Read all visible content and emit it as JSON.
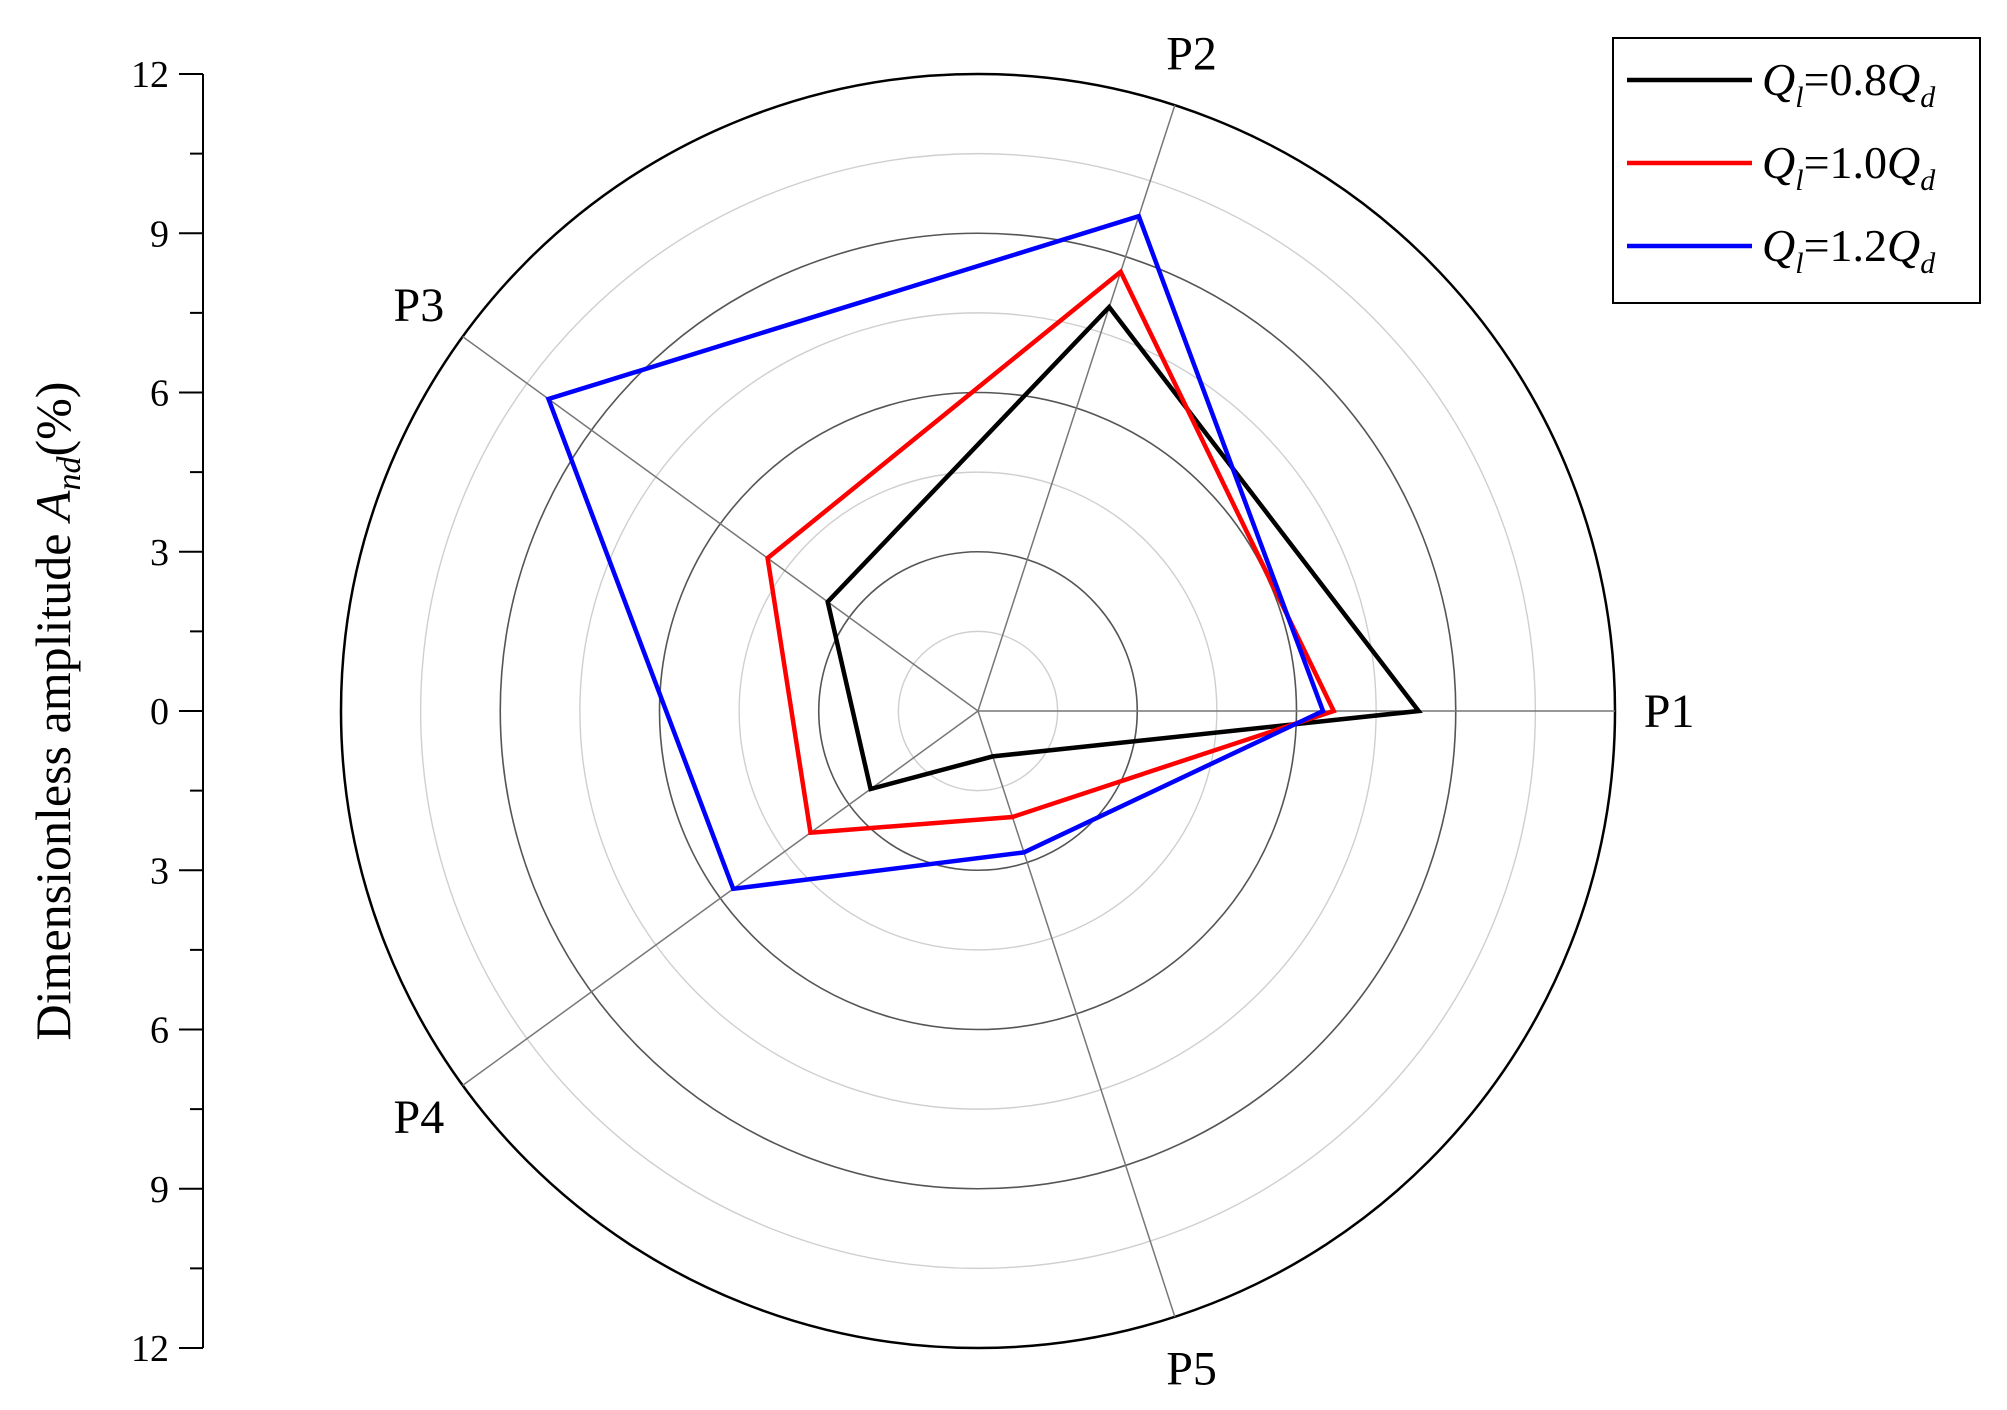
{
  "chart_data": {
    "type": "radar",
    "categories": [
      "P1",
      "P2",
      "P3",
      "P4",
      "P5"
    ],
    "category_angles_deg": [
      0,
      72,
      144,
      216,
      288
    ],
    "radial_range": [
      0,
      12
    ],
    "radial_ticks": [
      0,
      3,
      6,
      9,
      12
    ],
    "ylabel_main": "Dimensionless amplitude ",
    "ylabel_sym": "A",
    "ylabel_sub": "nd",
    "ylabel_unit": "(%)",
    "legend_position": "top-right",
    "series": [
      {
        "name": "Ql=0.8Qd",
        "legend": {
          "q1": "Q",
          "s1": "l",
          "mid": "=0.8",
          "q2": "Q",
          "s2": "d"
        },
        "color": "#000000",
        "values": [
          8.3,
          8.0,
          3.5,
          2.5,
          0.9
        ]
      },
      {
        "name": "Ql=1.0Qd",
        "legend": {
          "q1": "Q",
          "s1": "l",
          "mid": "=1.0",
          "q2": "Q",
          "s2": "d"
        },
        "color": "#ff0000",
        "values": [
          6.7,
          8.7,
          4.9,
          3.9,
          2.1
        ]
      },
      {
        "name": "Ql=1.2Qd",
        "legend": {
          "q1": "Q",
          "s1": "l",
          "mid": "=1.2",
          "q2": "Q",
          "s2": "d"
        },
        "color": "#0000ff",
        "values": [
          6.5,
          9.8,
          10.0,
          5.7,
          2.8
        ]
      }
    ]
  }
}
